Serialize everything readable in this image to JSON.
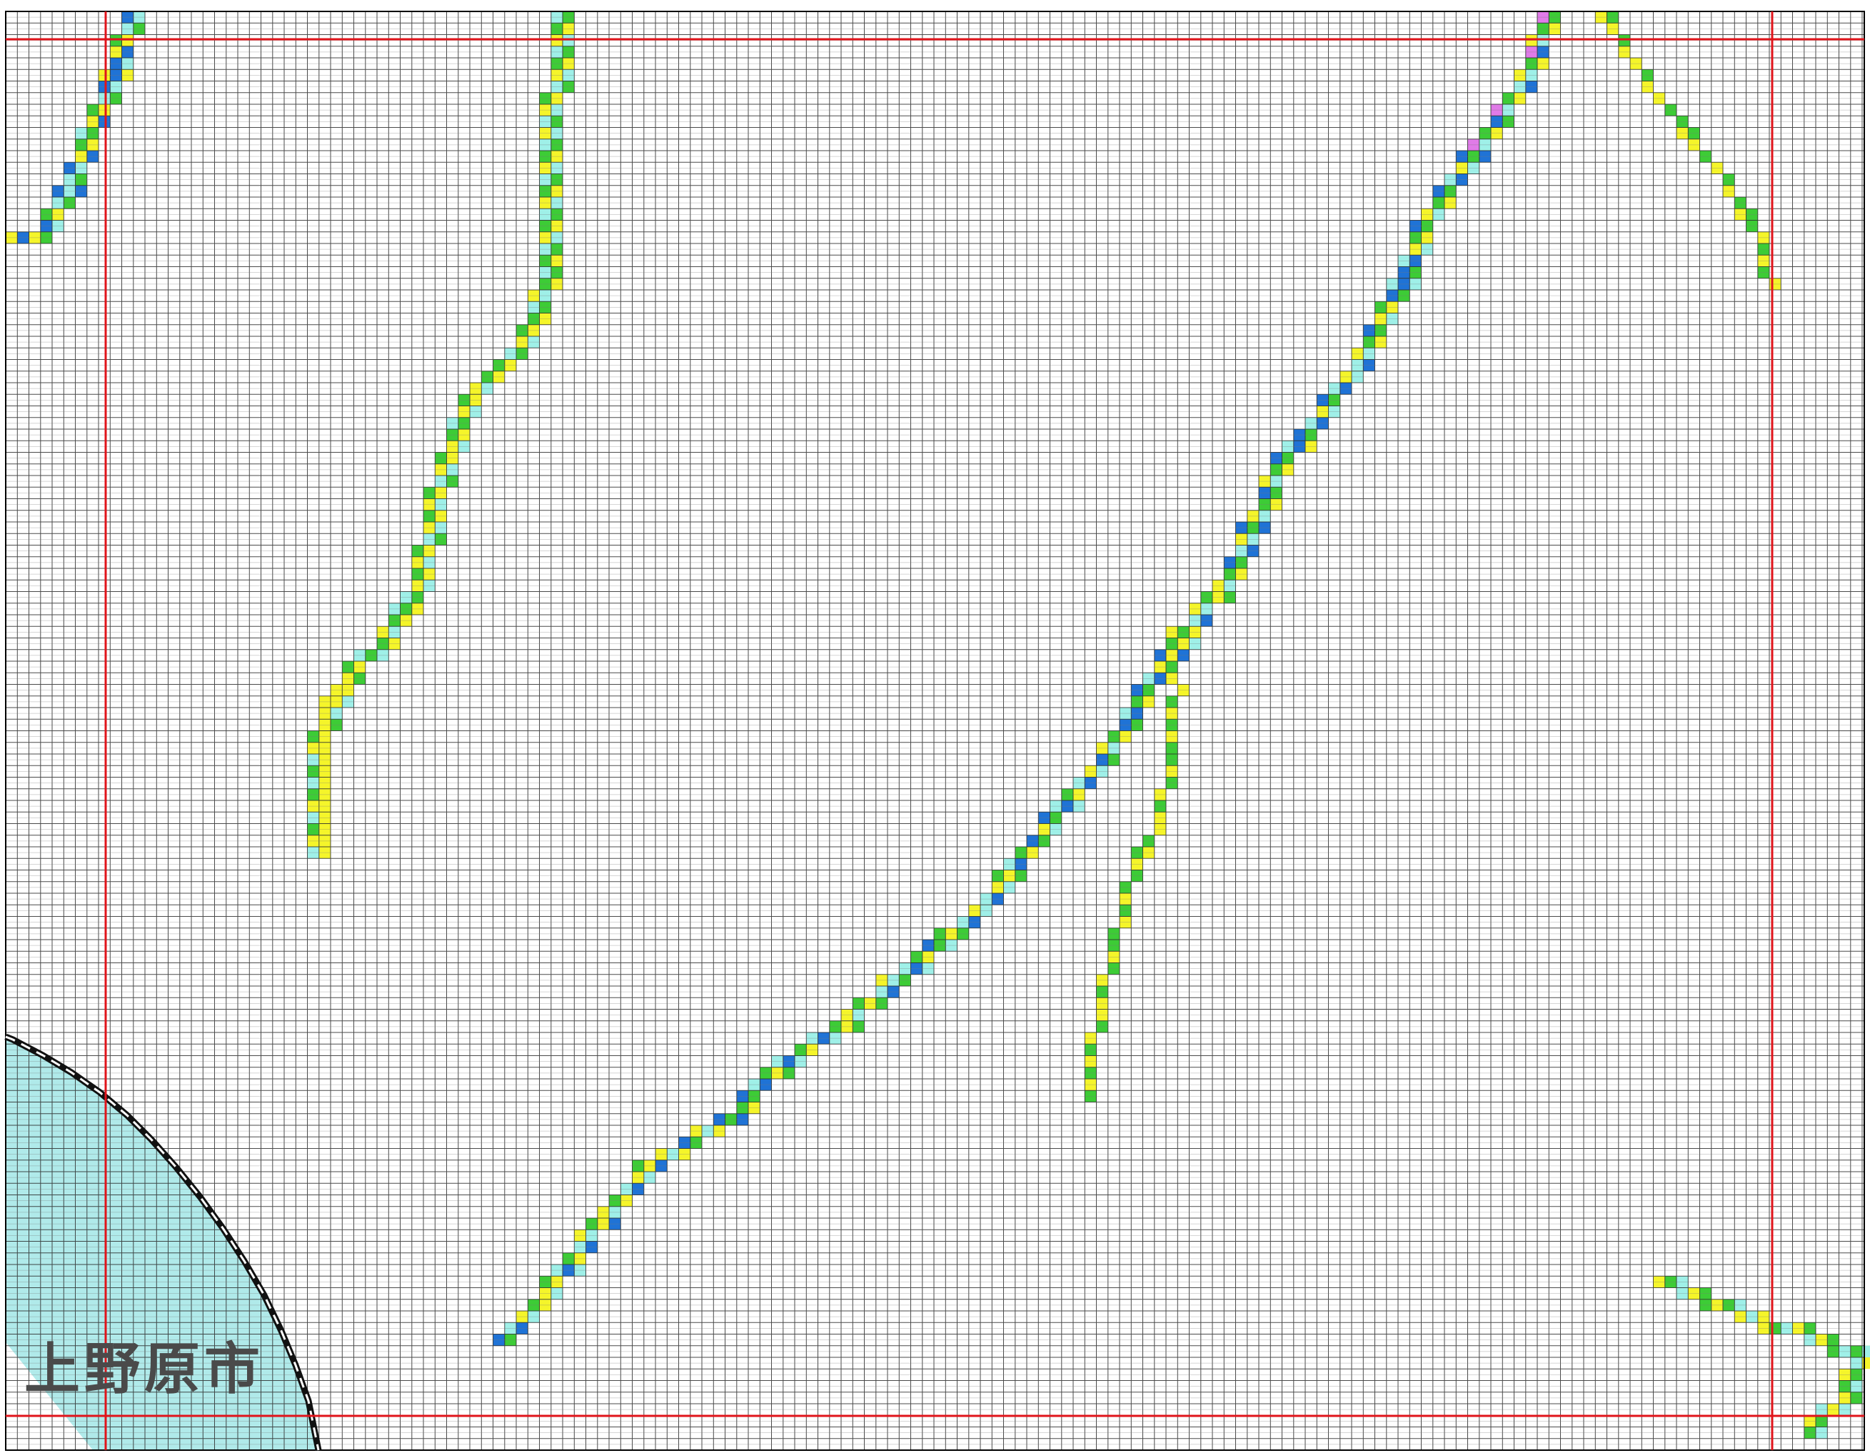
{
  "map": {
    "place_label": "上野原市",
    "colors": {
      "background": "#ffffff",
      "grid_line": "#2a2a2a",
      "reference_line": "#e0141b",
      "municipal_area": "#b0eaea",
      "boundary_line": "#111111",
      "cell_light_cyan": "#9ff0e8",
      "cell_green": "#3dcc36",
      "cell_yellow": "#f5f52a",
      "cell_blue": "#1f73d6",
      "cell_dark_blue": "#1a3fb8",
      "cell_magenta": "#e07be8"
    },
    "legend_note": "",
    "cell_value_text": ""
  }
}
